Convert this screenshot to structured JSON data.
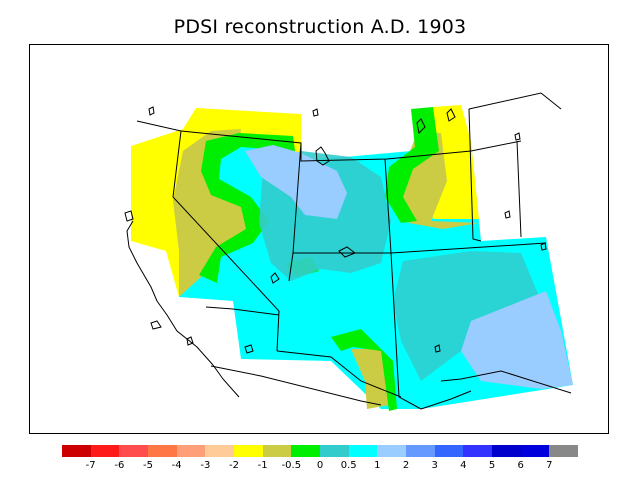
{
  "title": "PDSI reconstruction A.D. 1903",
  "legend": {
    "labels": [
      "-7",
      "-6",
      "-5",
      "-4",
      "-3",
      "-2",
      "-1",
      "-0.5",
      "0",
      "0.5",
      "1",
      "2",
      "3",
      "4",
      "5",
      "6",
      "7"
    ],
    "colors": [
      "#cc0000",
      "#ff1a1a",
      "#ff4d4d",
      "#ff7744",
      "#ff9f7a",
      "#ffcc99",
      "#ffff00",
      "#cccc44",
      "#00ee00",
      "#33cccc",
      "#00ffff",
      "#99ccff",
      "#6699ff",
      "#3366ff",
      "#3333ff",
      "#0000cc",
      "#0000dd",
      "#888888"
    ]
  },
  "map": {
    "palette": {
      "yellow": "#ffff00",
      "olive": "#cccc44",
      "green": "#00ee00",
      "teal": "#33cccc",
      "cyan": "#00ffff",
      "light_blue": "#99ccff"
    }
  }
}
